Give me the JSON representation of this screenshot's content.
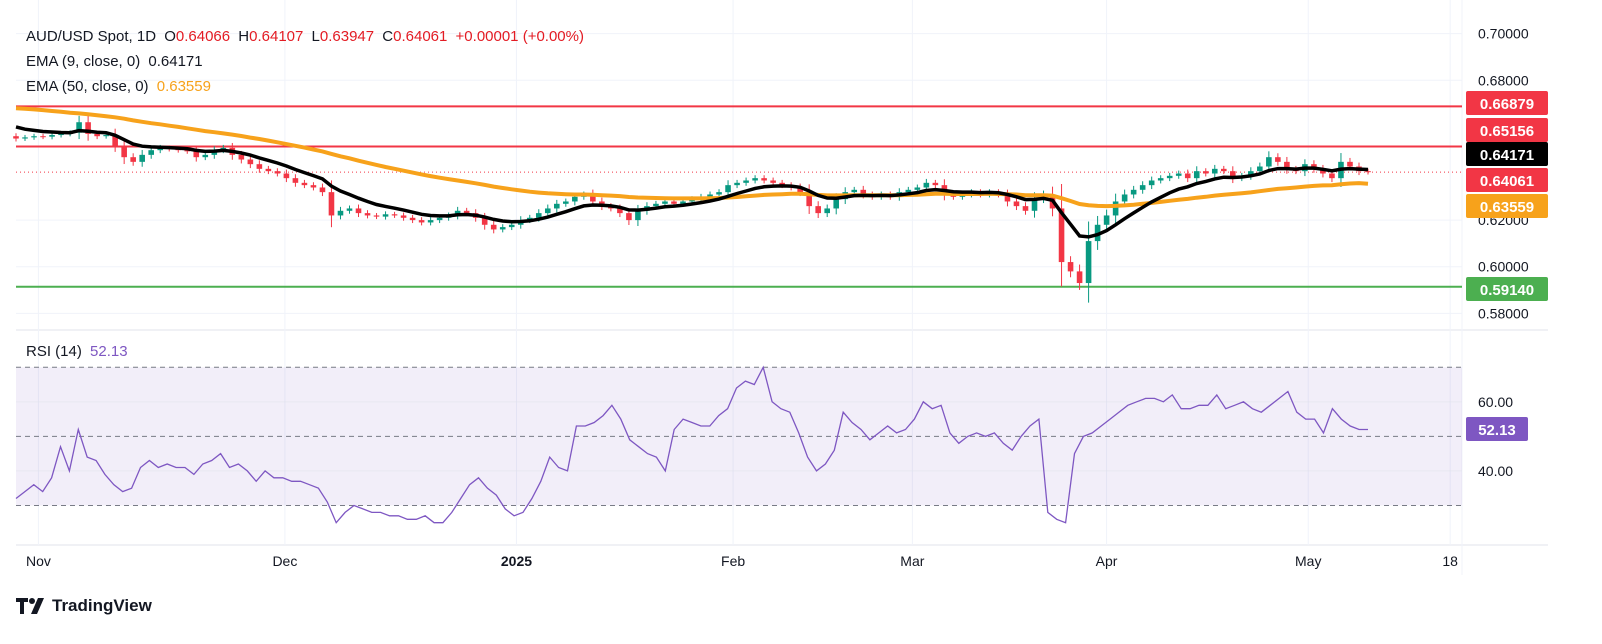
{
  "header": {
    "symbol": "AUD/USD Spot, 1D",
    "o_label": "O",
    "o": "0.64066",
    "h_label": "H",
    "h": "0.64107",
    "l_label": "L",
    "l": "0.63947",
    "c_label": "C",
    "c": "0.64061",
    "change": "+0.00001 (+0.00%)"
  },
  "ema9": {
    "label": "EMA (9, close, 0)",
    "value": "0.64171",
    "color": "#000000"
  },
  "ema50": {
    "label": "EMA (50, close, 0)",
    "value": "0.63559",
    "color": "#f7a21b"
  },
  "rsi": {
    "label": "RSI (14)",
    "value": "52.13",
    "color": "#7e57c2"
  },
  "branding": {
    "name": "TradingView"
  },
  "chart_data": [
    {
      "type": "candlestick",
      "title": "AUD/USD Spot, 1D",
      "y_axis_ticks": [
        "0.70000",
        "0.68000",
        "0.62000",
        "0.60000",
        "0.58000"
      ],
      "ylim": [
        0.575,
        0.705
      ],
      "x_axis_ticks": [
        "Nov",
        "Dec",
        "2025",
        "Feb",
        "Mar",
        "Apr",
        "May",
        "18"
      ],
      "horizontal_levels": [
        {
          "value": 0.66879,
          "label": "0.66879",
          "color": "#f23645"
        },
        {
          "value": 0.65156,
          "label": "0.65156",
          "color": "#f23645"
        },
        {
          "value": 0.5914,
          "label": "0.59140",
          "color": "#4caf50"
        }
      ],
      "price_labels": [
        {
          "value": 0.64171,
          "label": "0.64171",
          "color": "#000000"
        },
        {
          "value": 0.64061,
          "label": "0.64061",
          "color": "#f23645"
        },
        {
          "value": 0.63559,
          "label": "0.63559",
          "color": "#f7a21b"
        }
      ],
      "close": [
        0.655,
        0.6555,
        0.656,
        0.6558,
        0.6565,
        0.657,
        0.6575,
        0.662,
        0.657,
        0.656,
        0.6565,
        0.652,
        0.647,
        0.645,
        0.648,
        0.65,
        0.651,
        0.6505,
        0.65,
        0.6495,
        0.647,
        0.648,
        0.65,
        0.651,
        0.648,
        0.646,
        0.644,
        0.642,
        0.641,
        0.64,
        0.638,
        0.636,
        0.635,
        0.634,
        0.632,
        0.622,
        0.624,
        0.625,
        0.623,
        0.622,
        0.6215,
        0.6225,
        0.622,
        0.621,
        0.62,
        0.619,
        0.62,
        0.621,
        0.622,
        0.624,
        0.623,
        0.621,
        0.618,
        0.616,
        0.617,
        0.618,
        0.62,
        0.621,
        0.623,
        0.625,
        0.627,
        0.628,
        0.63,
        0.631,
        0.628,
        0.626,
        0.625,
        0.623,
        0.62,
        0.624,
        0.626,
        0.627,
        0.628,
        0.627,
        0.628,
        0.629,
        0.63,
        0.631,
        0.632,
        0.635,
        0.636,
        0.637,
        0.638,
        0.637,
        0.636,
        0.635,
        0.634,
        0.632,
        0.626,
        0.623,
        0.625,
        0.629,
        0.632,
        0.633,
        0.631,
        0.63,
        0.631,
        0.63,
        0.632,
        0.633,
        0.634,
        0.636,
        0.635,
        0.631,
        0.63,
        0.631,
        0.632,
        0.631,
        0.632,
        0.631,
        0.628,
        0.626,
        0.624,
        0.629,
        0.631,
        0.625,
        0.602,
        0.598,
        0.593,
        0.611,
        0.618,
        0.622,
        0.628,
        0.631,
        0.633,
        0.635,
        0.637,
        0.638,
        0.639,
        0.64,
        0.638,
        0.641,
        0.64,
        0.642,
        0.641,
        0.638,
        0.639,
        0.641,
        0.643,
        0.647,
        0.645,
        0.642,
        0.641,
        0.644,
        0.642,
        0.64,
        0.638,
        0.645,
        0.643,
        0.641,
        0.6406
      ],
      "ema9": [
        0.66,
        0.659,
        0.6585,
        0.658,
        0.6578,
        0.6576,
        0.6575,
        0.6584,
        0.6581,
        0.6577,
        0.6575,
        0.6564,
        0.6545,
        0.6526,
        0.6517,
        0.6514,
        0.6513,
        0.6511,
        0.6509,
        0.6506,
        0.6499,
        0.6495,
        0.6496,
        0.6499,
        0.6495,
        0.6488,
        0.6479,
        0.6467,
        0.6456,
        0.6445,
        0.6432,
        0.6417,
        0.6404,
        0.6391,
        0.6377,
        0.6346,
        0.6325,
        0.631,
        0.6294,
        0.628,
        0.6267,
        0.6259,
        0.6251,
        0.6243,
        0.6234,
        0.6225,
        0.622,
        0.6218,
        0.6218,
        0.6223,
        0.6224,
        0.6221,
        0.6213,
        0.6203,
        0.6196,
        0.6193,
        0.6194,
        0.6197,
        0.6204,
        0.6213,
        0.6225,
        0.6236,
        0.6249,
        0.6261,
        0.6265,
        0.6264,
        0.6261,
        0.6255,
        0.6244,
        0.6243,
        0.6247,
        0.6251,
        0.6257,
        0.626,
        0.6264,
        0.6269,
        0.6275,
        0.6282,
        0.629,
        0.6302,
        0.6314,
        0.6325,
        0.6336,
        0.6343,
        0.6346,
        0.6347,
        0.6346,
        0.6341,
        0.6325,
        0.6306,
        0.6295,
        0.6294,
        0.6299,
        0.6305,
        0.6306,
        0.6305,
        0.6306,
        0.6305,
        0.6308,
        0.6313,
        0.6318,
        0.6327,
        0.6331,
        0.6327,
        0.6322,
        0.632,
        0.632,
        0.6318,
        0.6319,
        0.6317,
        0.631,
        0.63,
        0.6288,
        0.6289,
        0.6293,
        0.6285,
        0.6232,
        0.6182,
        0.6132,
        0.6128,
        0.6138,
        0.6155,
        0.618,
        0.6206,
        0.6231,
        0.6255,
        0.6278,
        0.6298,
        0.6317,
        0.6333,
        0.6343,
        0.6357,
        0.6366,
        0.6377,
        0.6384,
        0.6383,
        0.6385,
        0.639,
        0.6398,
        0.6413,
        0.6421,
        0.6421,
        0.6419,
        0.6423,
        0.6423,
        0.6418,
        0.6411,
        0.6419,
        0.6421,
        0.6419,
        0.6417
      ],
      "ema50": [
        0.668,
        0.6678,
        0.6675,
        0.6672,
        0.6668,
        0.6665,
        0.6661,
        0.6658,
        0.6654,
        0.665,
        0.6646,
        0.6641,
        0.6635,
        0.6628,
        0.6622,
        0.6616,
        0.6611,
        0.6605,
        0.66,
        0.6594,
        0.6588,
        0.6582,
        0.6577,
        0.6572,
        0.6567,
        0.6561,
        0.6554,
        0.6548,
        0.6541,
        0.6534,
        0.6526,
        0.6519,
        0.6511,
        0.6503,
        0.6495,
        0.6484,
        0.6474,
        0.6465,
        0.6455,
        0.6446,
        0.6437,
        0.6428,
        0.642,
        0.6412,
        0.6404,
        0.6396,
        0.6389,
        0.6382,
        0.6376,
        0.637,
        0.6364,
        0.6358,
        0.6351,
        0.6344,
        0.6338,
        0.6332,
        0.6327,
        0.6322,
        0.6318,
        0.6315,
        0.6313,
        0.6311,
        0.631,
        0.631,
        0.6309,
        0.6307,
        0.6305,
        0.6303,
        0.6299,
        0.6297,
        0.6296,
        0.6295,
        0.6294,
        0.6293,
        0.6293,
        0.6293,
        0.6293,
        0.6294,
        0.6295,
        0.6297,
        0.6299,
        0.6302,
        0.6305,
        0.6308,
        0.631,
        0.6311,
        0.6313,
        0.6313,
        0.6311,
        0.6308,
        0.6306,
        0.6306,
        0.6306,
        0.6307,
        0.6307,
        0.6307,
        0.6307,
        0.6307,
        0.6307,
        0.6308,
        0.6309,
        0.6311,
        0.6313,
        0.6313,
        0.6312,
        0.6312,
        0.6312,
        0.6312,
        0.6313,
        0.6312,
        0.6311,
        0.631,
        0.6307,
        0.6307,
        0.6307,
        0.6305,
        0.6294,
        0.6282,
        0.6269,
        0.6264,
        0.6261,
        0.626,
        0.6261,
        0.6263,
        0.6266,
        0.627,
        0.6274,
        0.6278,
        0.6283,
        0.6287,
        0.6291,
        0.6296,
        0.63,
        0.6305,
        0.6309,
        0.6312,
        0.6315,
        0.6319,
        0.6324,
        0.6329,
        0.6334,
        0.6337,
        0.634,
        0.6344,
        0.6347,
        0.6349,
        0.635,
        0.6354,
        0.6357,
        0.6359,
        0.6356
      ]
    },
    {
      "type": "line",
      "title": "RSI (14)",
      "y_axis_ticks": [
        "60.00",
        "40.00"
      ],
      "ylim": [
        20,
        75
      ],
      "bands": [
        70,
        50,
        30
      ],
      "current": {
        "value": 52.13,
        "label": "52.13"
      },
      "values": [
        32,
        34,
        36,
        34,
        38,
        47,
        40,
        52,
        44,
        43,
        39,
        36,
        34,
        35,
        41,
        43,
        41,
        42,
        41,
        41,
        39,
        42,
        43,
        45,
        41,
        42,
        40,
        37,
        40,
        38,
        38,
        37,
        37,
        36,
        35,
        31,
        25,
        28,
        30,
        29,
        28,
        28,
        27,
        27,
        26,
        26,
        27,
        25,
        25,
        28,
        32,
        36,
        38,
        35,
        33,
        29,
        27,
        28,
        32,
        37,
        44,
        41,
        40,
        53,
        53,
        54,
        56,
        59,
        55,
        49,
        47,
        45,
        44,
        40,
        52,
        55,
        54,
        53,
        53,
        56,
        58,
        64,
        66,
        65,
        70,
        60,
        58,
        57,
        51,
        44,
        40,
        42,
        46,
        57,
        54,
        52,
        49,
        51,
        53,
        51,
        52,
        55,
        60,
        58,
        59,
        51,
        48,
        50,
        51,
        50,
        51,
        48,
        46,
        50,
        53,
        55,
        28,
        26,
        25,
        45,
        50,
        51,
        53,
        55,
        57,
        59,
        60,
        61,
        61,
        60,
        62,
        58,
        58,
        59,
        59,
        62,
        58,
        59,
        60,
        58,
        57,
        59,
        61,
        63,
        57,
        55,
        55,
        51,
        58,
        55,
        53,
        52,
        52
      ]
    }
  ]
}
